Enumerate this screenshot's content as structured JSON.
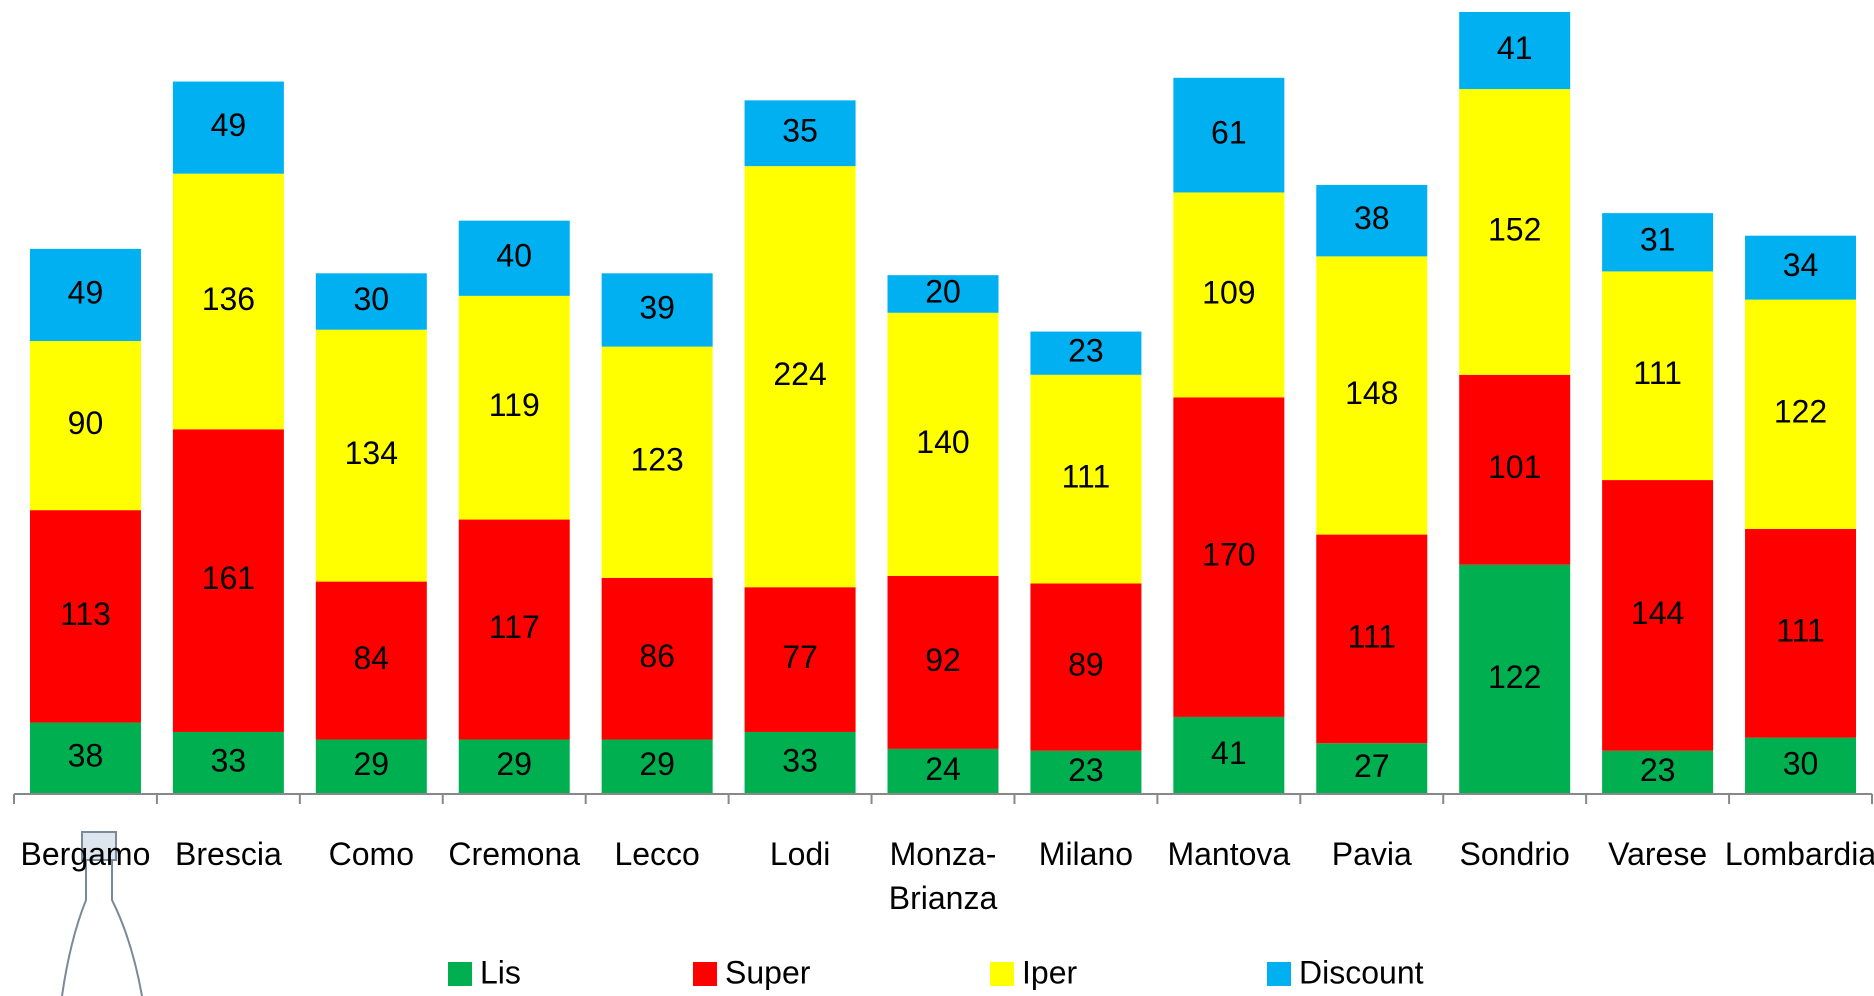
{
  "chart_data": {
    "type": "stacked-bar",
    "categories": [
      "Bergamo",
      "Brescia",
      "Como",
      "Cremona",
      "Lecco",
      "Lodi",
      "Monza-Brianza",
      "Milano",
      "Mantova",
      "Pavia",
      "Sondrio",
      "Varese",
      "Lombardia"
    ],
    "series": [
      {
        "name": "Lis",
        "color": "#00b050",
        "values": [
          38,
          33,
          29,
          29,
          29,
          33,
          24,
          23,
          41,
          27,
          122,
          23,
          30
        ]
      },
      {
        "name": "Super",
        "color": "#ff0000",
        "values": [
          113,
          161,
          84,
          117,
          86,
          77,
          92,
          89,
          170,
          111,
          101,
          144,
          111
        ]
      },
      {
        "name": "Iper",
        "color": "#ffff00",
        "values": [
          90,
          136,
          134,
          119,
          123,
          224,
          140,
          111,
          109,
          148,
          152,
          111,
          122
        ]
      },
      {
        "name": "Discount",
        "color": "#00b0f0",
        "values": [
          49,
          49,
          30,
          40,
          39,
          35,
          20,
          23,
          61,
          38,
          41,
          31,
          34
        ]
      }
    ]
  }
}
